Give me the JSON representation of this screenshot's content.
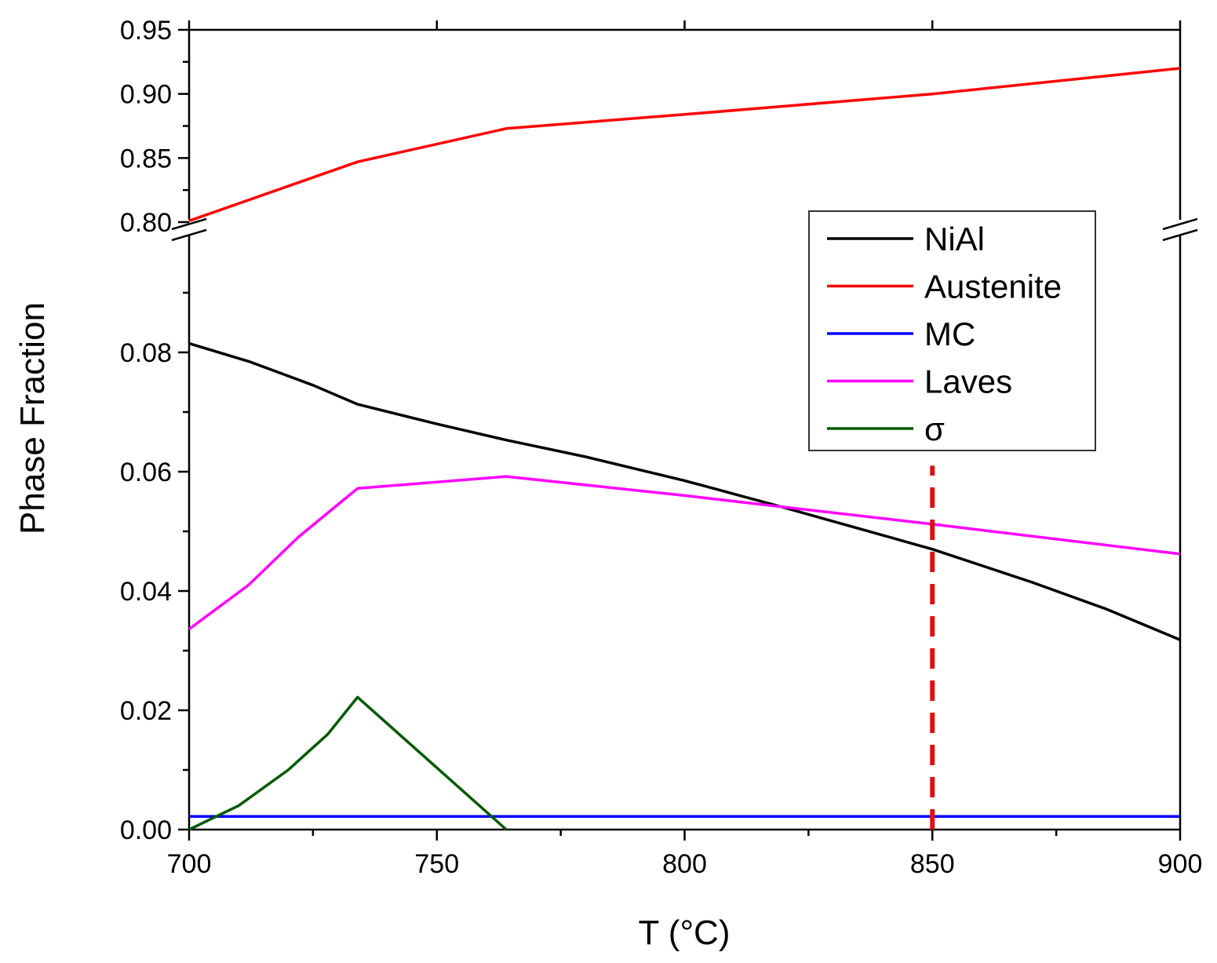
{
  "chart_data": {
    "type": "line",
    "title": "",
    "xlabel": "T (°C)",
    "ylabel": "Phase Fraction",
    "xlim": [
      700,
      900
    ],
    "x_ticks": [
      "700",
      "750",
      "800",
      "850",
      "900"
    ],
    "broken_y_axis": true,
    "ylim_upper": [
      0.8,
      0.95
    ],
    "ylim_lower": [
      0.0,
      0.095
    ],
    "y_ticks_upper": [
      "0.80",
      "0.85",
      "0.90",
      "0.95"
    ],
    "y_ticks_lower": [
      "0.00",
      "0.02",
      "0.04",
      "0.06",
      "0.08"
    ],
    "grid": false,
    "legend_position": "top-right",
    "series": [
      {
        "name": "NiAl",
        "color": "#000000",
        "segment": "lower",
        "points": [
          [
            700,
            0.0815
          ],
          [
            712,
            0.0785
          ],
          [
            725,
            0.0745
          ],
          [
            734,
            0.0713
          ],
          [
            750,
            0.068
          ],
          [
            764,
            0.0653
          ],
          [
            780,
            0.0625
          ],
          [
            800,
            0.0585
          ],
          [
            820,
            0.054
          ],
          [
            850,
            0.047
          ],
          [
            870,
            0.0415
          ],
          [
            885,
            0.037
          ],
          [
            900,
            0.0318
          ]
        ]
      },
      {
        "name": "Austenite",
        "color": "#ff0000",
        "segment": "upper",
        "points": [
          [
            700,
            0.801
          ],
          [
            734,
            0.847
          ],
          [
            764,
            0.873
          ],
          [
            800,
            0.884
          ],
          [
            850,
            0.9
          ],
          [
            900,
            0.92
          ]
        ]
      },
      {
        "name": "MC",
        "color": "#0000ff",
        "segment": "lower",
        "points": [
          [
            700,
            0.0022
          ],
          [
            900,
            0.0022
          ]
        ]
      },
      {
        "name": "Laves",
        "color": "#ff00ff",
        "segment": "lower",
        "points": [
          [
            700,
            0.0336
          ],
          [
            712,
            0.041
          ],
          [
            722,
            0.049
          ],
          [
            734,
            0.0572
          ],
          [
            764,
            0.0592
          ],
          [
            800,
            0.056
          ],
          [
            850,
            0.0512
          ],
          [
            900,
            0.0462
          ]
        ]
      },
      {
        "name": "σ",
        "color": "#005a00",
        "segment": "lower",
        "points": [
          [
            700,
            0.0
          ],
          [
            710,
            0.004
          ],
          [
            720,
            0.01
          ],
          [
            728,
            0.016
          ],
          [
            734,
            0.0222
          ],
          [
            764,
            0.0
          ]
        ]
      }
    ],
    "annotations": [
      {
        "type": "vertical-dashed-line",
        "x": 850,
        "y_range": [
          0.0,
          0.061
        ],
        "color": "#dd1111"
      }
    ]
  }
}
